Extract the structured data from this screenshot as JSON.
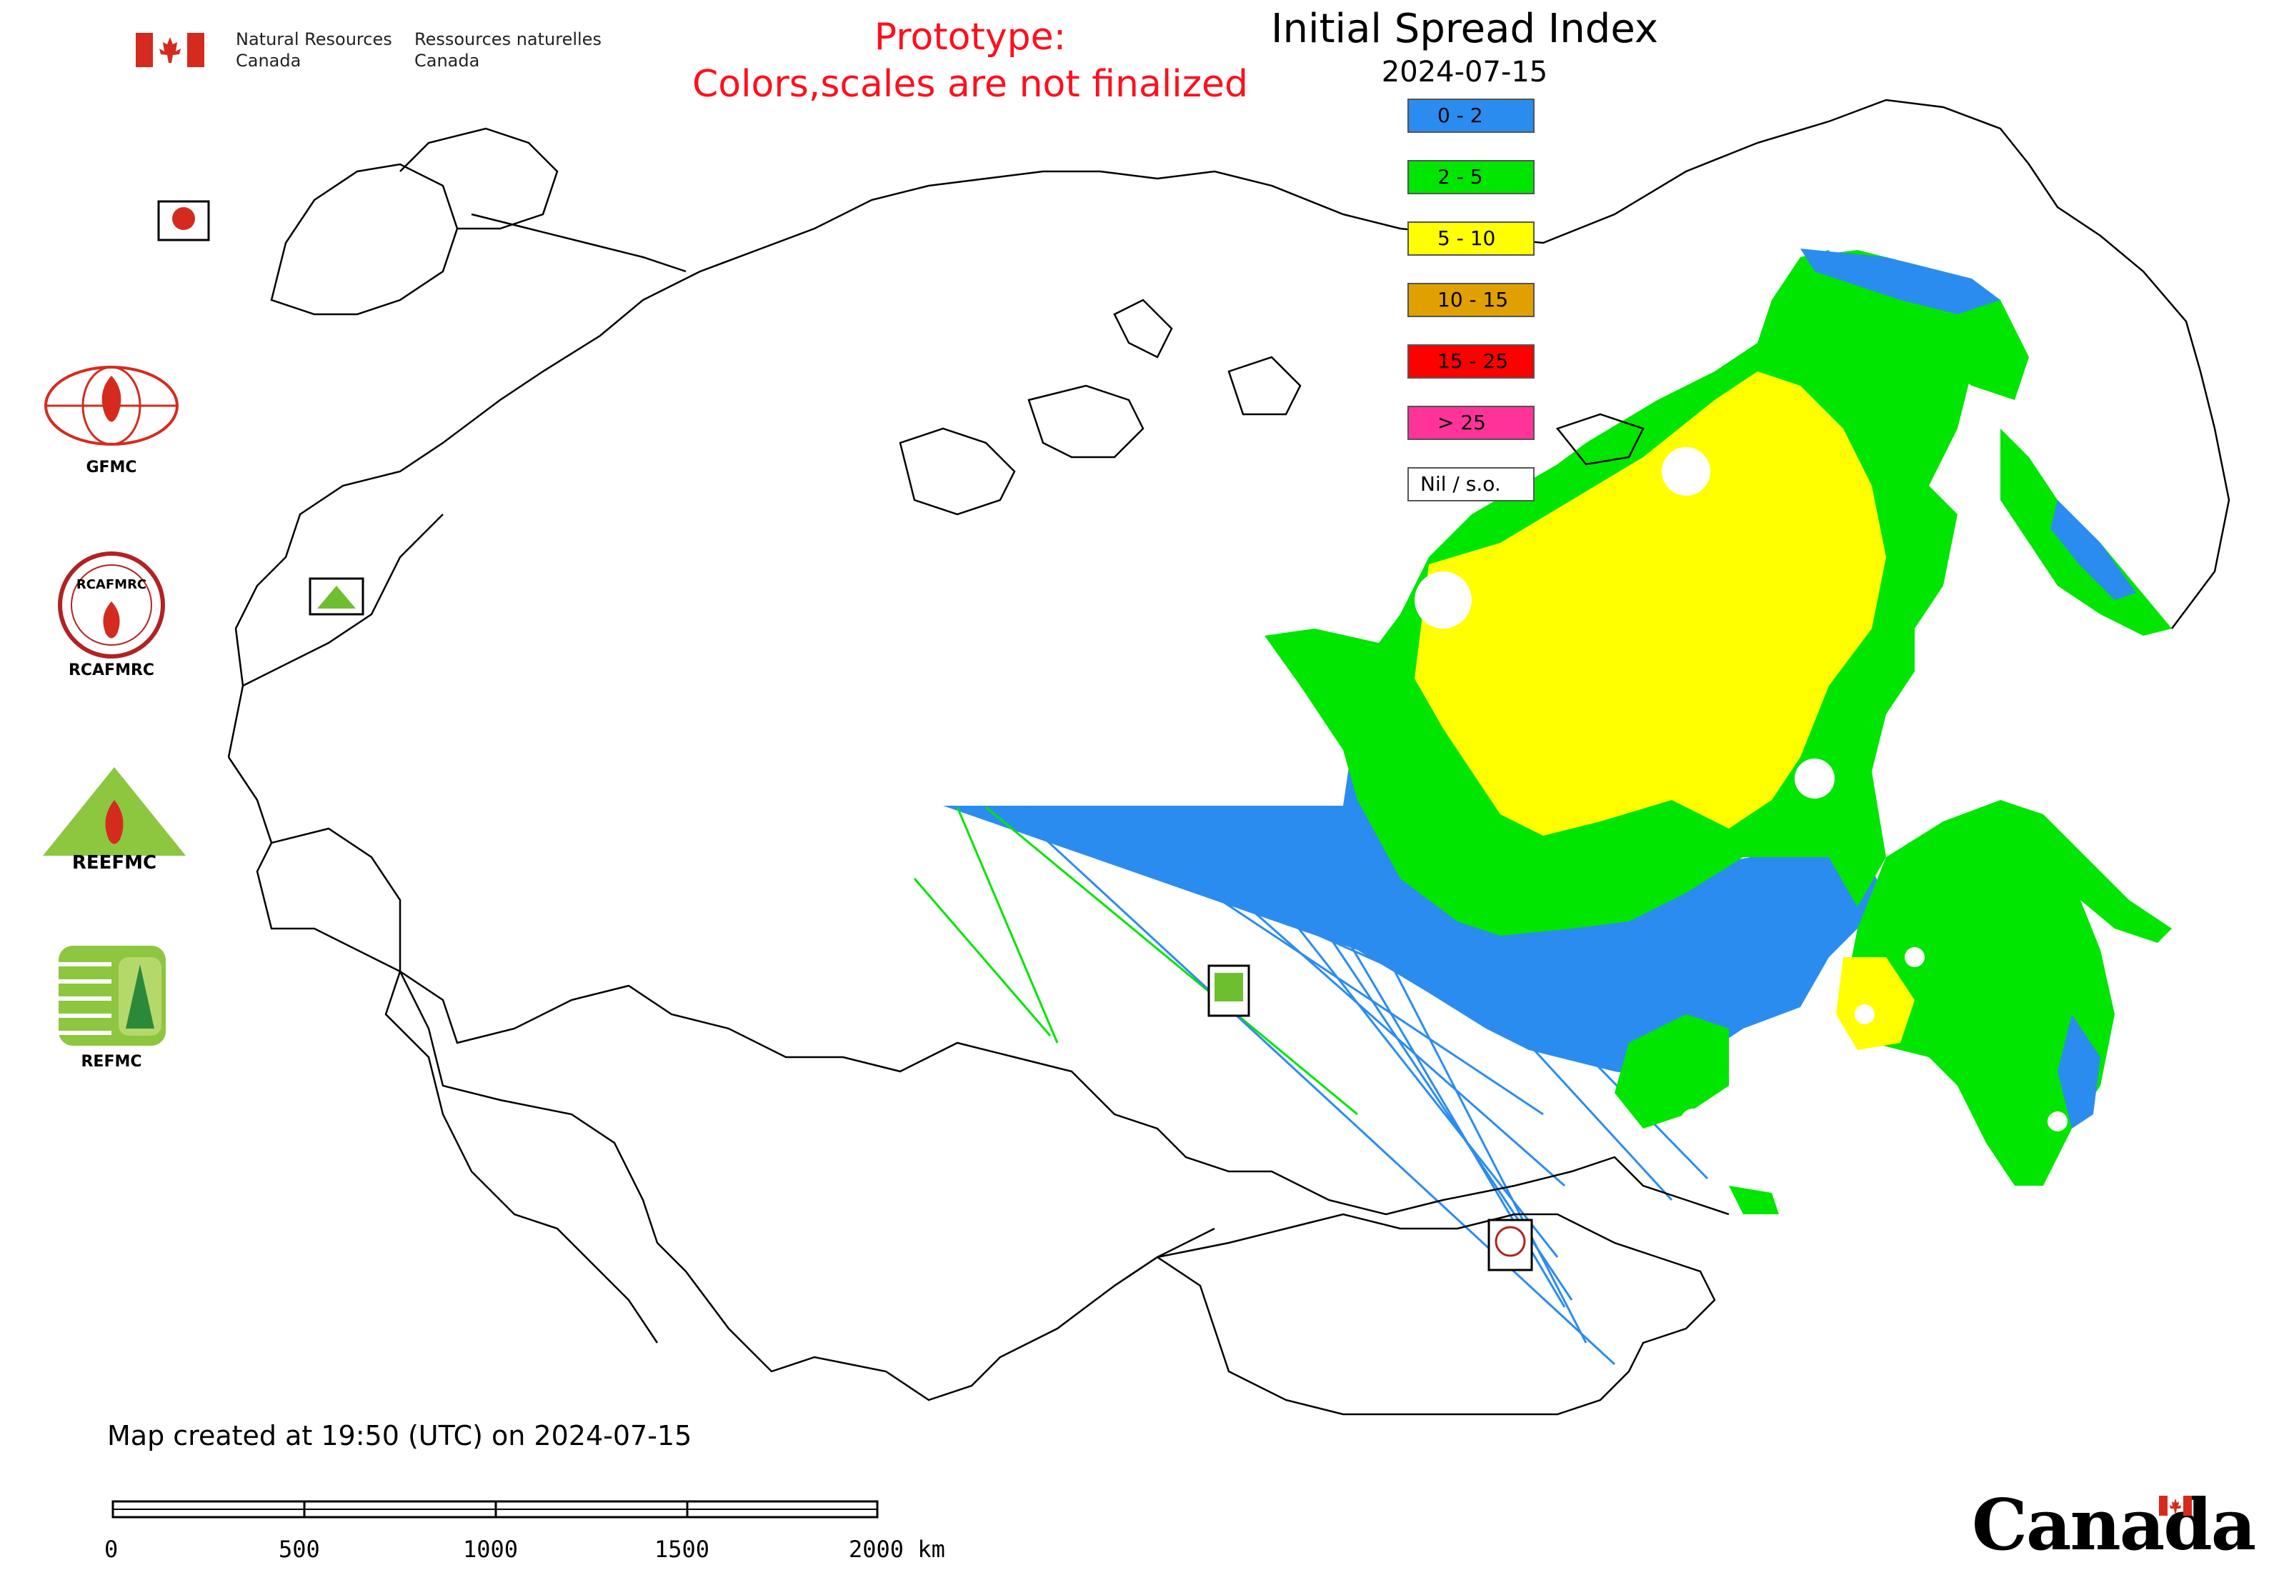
{
  "header": {
    "department_en": "Natural Resources\nCanada",
    "department_fr": "Ressources naturelles\nCanada"
  },
  "notice": {
    "line1": "Prototype:",
    "line2": "Colors,scales are not finalized"
  },
  "map": {
    "title": "Initial Spread Index",
    "date": "2024-07-15",
    "legend": [
      {
        "label": "0 - 2",
        "color": "#2b8cf0"
      },
      {
        "label": "2 - 5",
        "color": "#00e600"
      },
      {
        "label": "5 - 10",
        "color": "#ffff00"
      },
      {
        "label": "10 - 15",
        "color": "#e0a000"
      },
      {
        "label": "15 - 25",
        "color": "#ff0000"
      },
      {
        "label": "> 25",
        "color": "#ff3399"
      },
      {
        "label": "Nil / s.o.",
        "color": "#ffffff"
      }
    ],
    "station_markers": [
      "GFMC",
      "REEFMC",
      "REFMC",
      "RCAFMRC"
    ]
  },
  "logos": [
    {
      "label": "GFMC"
    },
    {
      "label": "RCAFMRC"
    },
    {
      "label": "REEFMC"
    },
    {
      "label": "REFMC"
    }
  ],
  "footer": {
    "created": "Map created at 19:50 (UTC) on 2024-07-15",
    "scale_ticks": [
      "0",
      "500",
      "1000",
      "1500",
      "2000 km"
    ],
    "wordmark": "Canada"
  }
}
